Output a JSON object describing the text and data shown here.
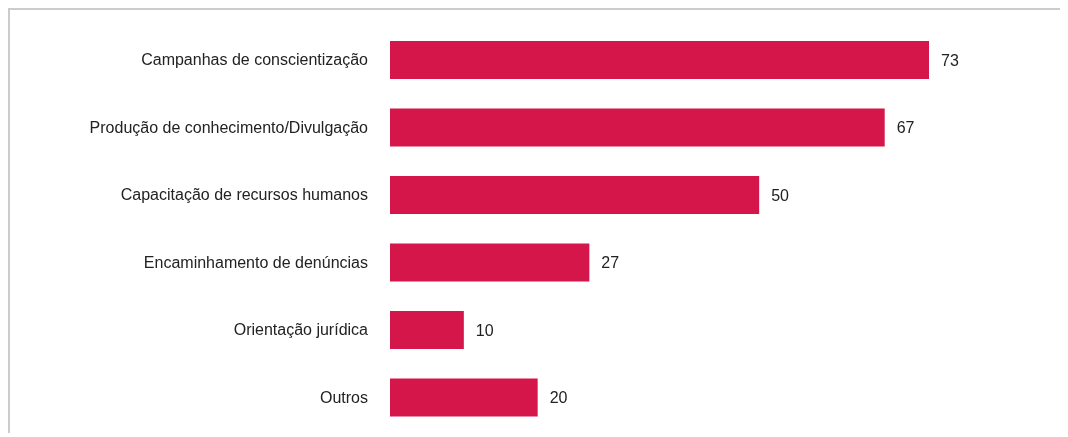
{
  "chart_data": {
    "type": "bar",
    "orientation": "horizontal",
    "categories": [
      "Campanhas de conscientização",
      "Produção de conhecimento/Divulgação",
      "Capacitação de recursos humanos",
      "Encaminhamento de denúncias",
      "Orientação jurídica",
      "Outros"
    ],
    "values": [
      73,
      67,
      50,
      27,
      10,
      20
    ],
    "color": "#d4164a",
    "data_labels": true
  }
}
